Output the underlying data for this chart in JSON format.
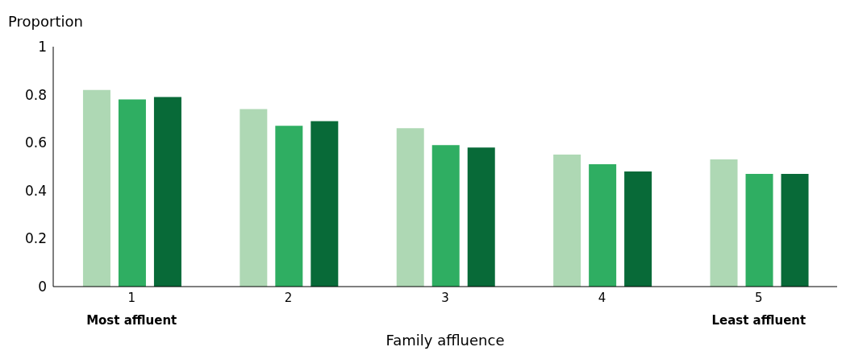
{
  "chart_data": {
    "type": "bar",
    "ylabel": "Proportion",
    "xlabel": "Family affluence",
    "categories": [
      "1",
      "2",
      "3",
      "4",
      "5"
    ],
    "series": [
      {
        "color": "#aed8b4",
        "values": [
          0.82,
          0.74,
          0.66,
          0.55,
          0.53
        ]
      },
      {
        "color": "#2fae62",
        "values": [
          0.78,
          0.67,
          0.59,
          0.51,
          0.47
        ]
      },
      {
        "color": "#086a38",
        "values": [
          0.79,
          0.69,
          0.58,
          0.48,
          0.47
        ]
      }
    ],
    "ylim": [
      0,
      1
    ],
    "yticks": [
      0,
      0.2,
      0.4,
      0.6,
      0.8,
      1
    ],
    "grid": false,
    "legend": false,
    "annotations": [
      "Most affluent",
      "Least affluent"
    ]
  }
}
